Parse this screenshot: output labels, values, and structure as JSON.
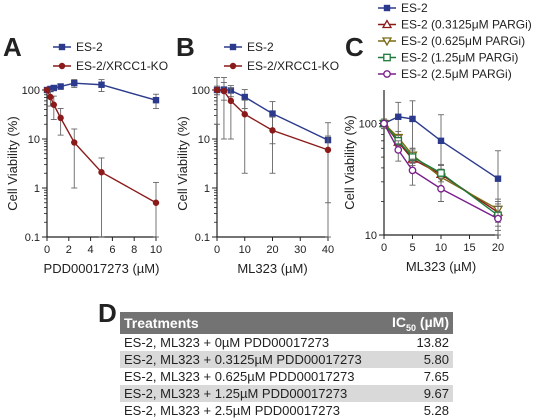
{
  "panels": [
    "A",
    "B",
    "C",
    "D"
  ],
  "chart_data": [
    {
      "type": "line",
      "panel": "A",
      "xlabel": "PDD00017273 (µM)",
      "ylabel": "Cell Viability (%)",
      "xlim": [
        0,
        10
      ],
      "ylim": [
        0.1,
        100
      ],
      "yscale": "log",
      "xticks": [
        0,
        2,
        4,
        6,
        8,
        10
      ],
      "yticks": [
        0.1,
        1,
        10,
        100
      ],
      "ytick_labels": [
        "0.1",
        "1",
        "10",
        "100"
      ],
      "legend_position": "top",
      "series": [
        {
          "name": "ES-2",
          "color": "#2b3a8c",
          "marker": "square",
          "x": [
            0,
            0.3125,
            0.625,
            1.25,
            2.5,
            5,
            10
          ],
          "y": [
            100,
            105,
            110,
            118,
            138,
            128,
            62
          ],
          "err": [
            8,
            10,
            12,
            15,
            25,
            35,
            20
          ]
        },
        {
          "name": "ES-2/XRCC1-KO",
          "color": "#8b1a1a",
          "marker": "circle",
          "x": [
            0,
            0.3125,
            0.625,
            1.25,
            2.5,
            5,
            10
          ],
          "y": [
            100,
            72,
            50,
            27,
            8.5,
            2.1,
            0.5
          ],
          "err": [
            5,
            25,
            25,
            15,
            7.5,
            2.0,
            0.8
          ]
        }
      ]
    },
    {
      "type": "line",
      "panel": "B",
      "xlabel": "ML323 (µM)",
      "ylabel": "Cell Viability (%)",
      "xlim": [
        0,
        40
      ],
      "ylim": [
        0.1,
        100
      ],
      "yscale": "log",
      "xticks": [
        0,
        10,
        20,
        30,
        40
      ],
      "yticks": [
        0.1,
        1,
        10,
        100
      ],
      "ytick_labels": [
        "0.1",
        "1",
        "10",
        "100"
      ],
      "legend_position": "top",
      "series": [
        {
          "name": "ES-2",
          "color": "#2b3a8c",
          "marker": "square",
          "x": [
            0,
            2.5,
            5,
            10,
            20,
            40
          ],
          "y": [
            100,
            102,
            98,
            72,
            33,
            9.5
          ],
          "err": [
            20,
            40,
            25,
            30,
            25,
            12
          ]
        },
        {
          "name": "ES-2/XRCC1-KO",
          "color": "#8b1a1a",
          "marker": "circle",
          "x": [
            0,
            2.5,
            5,
            10,
            20,
            40
          ],
          "y": [
            100,
            95,
            60,
            32,
            15,
            6
          ],
          "err": [
            80,
            85,
            50,
            30,
            13,
            5.5
          ]
        }
      ]
    },
    {
      "type": "line",
      "panel": "C",
      "xlabel": "ML323 (µM)",
      "ylabel": "Cell Viability (%)",
      "xlim": [
        0,
        20
      ],
      "ylim": [
        10,
        200
      ],
      "yscale": "log",
      "xticks": [
        0,
        5,
        10,
        15,
        20
      ],
      "yticks": [
        10,
        100
      ],
      "ytick_labels": [
        "10",
        "100"
      ],
      "legend_position": "top",
      "series": [
        {
          "name": "ES-2",
          "color": "#2b3a8c",
          "marker": "square",
          "x": [
            0,
            2.5,
            5,
            10,
            20
          ],
          "y": [
            100,
            115,
            110,
            70,
            32
          ],
          "err": [
            10,
            40,
            50,
            50,
            25
          ]
        },
        {
          "name": "ES-2 (0.3125μM PARGi)",
          "color": "#8b1a1a",
          "marker": "triangle-up",
          "x": [
            0,
            2.5,
            5,
            10,
            20
          ],
          "y": [
            100,
            68,
            48,
            35,
            16
          ],
          "err": [
            5,
            10,
            10,
            8,
            4
          ]
        },
        {
          "name": "ES-2 (0.625μM PARGi)",
          "color": "#7a6a12",
          "marker": "triangle-down",
          "x": [
            0,
            2.5,
            5,
            10,
            20
          ],
          "y": [
            100,
            75,
            52,
            33,
            17
          ],
          "err": [
            5,
            10,
            8,
            6,
            4
          ]
        },
        {
          "name": "ES-2 (1.25μM PARGi)",
          "color": "#1d7a3a",
          "marker": "square-open",
          "x": [
            0,
            2.5,
            5,
            10,
            20
          ],
          "y": [
            100,
            70,
            50,
            36,
            15
          ],
          "err": [
            5,
            8,
            8,
            6,
            4
          ]
        },
        {
          "name": "ES-2 (2.5μM PARGi)",
          "color": "#7a1f8c",
          "marker": "circle-open",
          "x": [
            0,
            2.5,
            5,
            10,
            20
          ],
          "y": [
            100,
            58,
            38,
            26,
            14
          ],
          "err": [
            5,
            12,
            10,
            6,
            4
          ]
        }
      ]
    },
    {
      "type": "table",
      "panel": "D",
      "columns": [
        "Treatments",
        "IC50 (µM)"
      ],
      "rows": [
        [
          "ES-2, ML323 + 0µM PDD00017273",
          "13.82"
        ],
        [
          "ES-2, ML323 + 0.3125µM PDD00017273",
          "5.80"
        ],
        [
          "ES-2, ML323 + 0.625µM PDD00017273",
          "7.65"
        ],
        [
          "ES-2, ML323 + 1.25µM PDD00017273",
          "9.67"
        ],
        [
          "ES-2, ML323 + 2.5µM PDD00017273",
          "5.28"
        ]
      ]
    }
  ],
  "table": {
    "header_treatments": "Treatments",
    "header_ic_prefix": "IC",
    "header_ic_sub": "50",
    "header_ic_suffix": " (µM)",
    "rows": [
      {
        "treatment": "ES-2, ML323 + 0µM PDD00017273",
        "ic50": "13.82"
      },
      {
        "treatment": "ES-2, ML323 + 0.3125µM PDD00017273",
        "ic50": "5.80"
      },
      {
        "treatment": "ES-2, ML323 + 0.625µM PDD00017273",
        "ic50": "7.65"
      },
      {
        "treatment": "ES-2, ML323 + 1.25µM PDD00017273",
        "ic50": "9.67"
      },
      {
        "treatment": "ES-2, ML323 + 2.5µM PDD00017273",
        "ic50": "5.28"
      }
    ]
  }
}
